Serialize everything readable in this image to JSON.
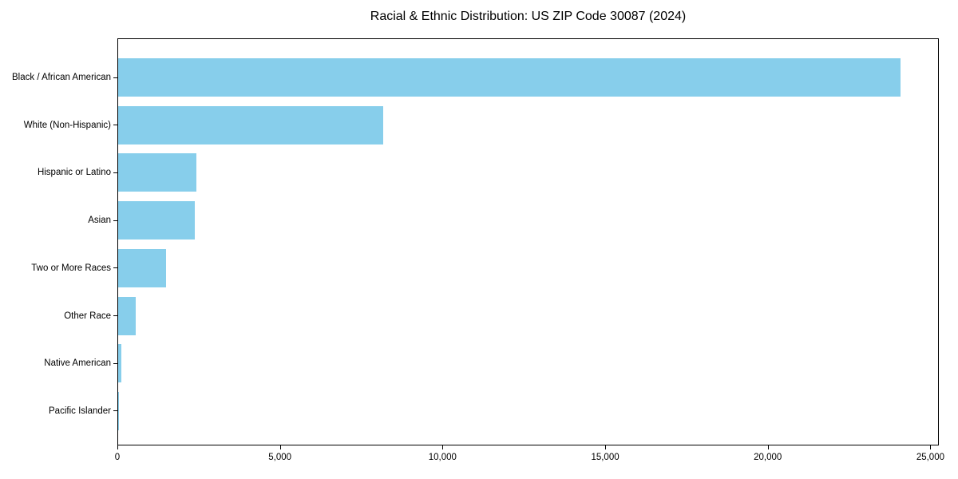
{
  "chart_data": {
    "type": "bar",
    "orientation": "horizontal",
    "title": "Racial & Ethnic Distribution: US ZIP Code 30087 (2024)",
    "categories": [
      "Black / African American",
      "White (Non-Hispanic)",
      "Hispanic or Latino",
      "Asian",
      "Two or More Races",
      "Other Race",
      "Native American",
      "Pacific Islander"
    ],
    "values": [
      24060,
      8150,
      2400,
      2360,
      1480,
      530,
      100,
      10
    ],
    "xlabel": "",
    "ylabel": "",
    "xlim": [
      0,
      25260
    ],
    "x_ticks": {
      "values": [
        0,
        5000,
        10000,
        15000,
        20000,
        25000
      ],
      "labels": [
        "0",
        "5,000",
        "10,000",
        "15,000",
        "20,000",
        "25,000"
      ]
    },
    "bar_color": "#87CEEB",
    "background_color": "#FFFFFF",
    "text_color": "#000000",
    "spine_color": "#000000",
    "grid": false,
    "legend": "none"
  }
}
